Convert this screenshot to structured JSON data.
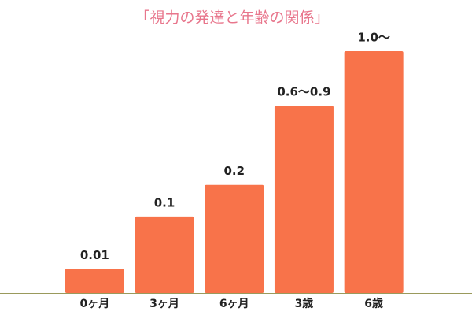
{
  "chart_data": {
    "type": "bar",
    "title": "「視力の発達と年齢の関係」",
    "categories": [
      "0ヶ月",
      "3ヶ月",
      "6ヶ月",
      "3歳",
      "6歳"
    ],
    "values": [
      0.01,
      0.1,
      0.2,
      0.6,
      1.0
    ],
    "value_labels": [
      "0.01",
      "0.1",
      "0.2",
      "0.6〜0.9",
      "1.0〜"
    ],
    "color": "#f8734a",
    "yscale": "sqrt",
    "ylim": [
      0,
      1
    ]
  }
}
